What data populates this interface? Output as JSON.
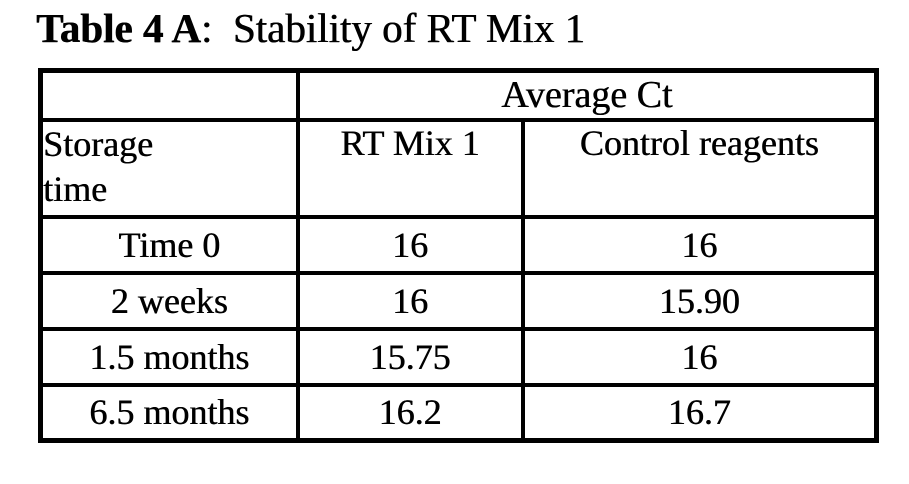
{
  "page": {
    "background": "#ffffff",
    "ink_color": "#000000"
  },
  "title": {
    "bold": "Table 4 A",
    "rest": ":  Stability of RT Mix 1"
  },
  "table": {
    "merged_header": "Average Ct",
    "column_headers": {
      "storage_time": "Storage\ntime",
      "rt_mix_1": "RT Mix 1",
      "control_reagents": "Control reagents"
    },
    "rows": [
      {
        "storage_time": "Time 0",
        "rt_mix_1": "16",
        "control_reagents": "16"
      },
      {
        "storage_time": "2 weeks",
        "rt_mix_1": "16",
        "control_reagents": "15.90"
      },
      {
        "storage_time": "1.5 months",
        "rt_mix_1": "15.75",
        "control_reagents": "16"
      },
      {
        "storage_time": "6.5 months",
        "rt_mix_1": "16.2",
        "control_reagents": "16.7"
      }
    ]
  }
}
